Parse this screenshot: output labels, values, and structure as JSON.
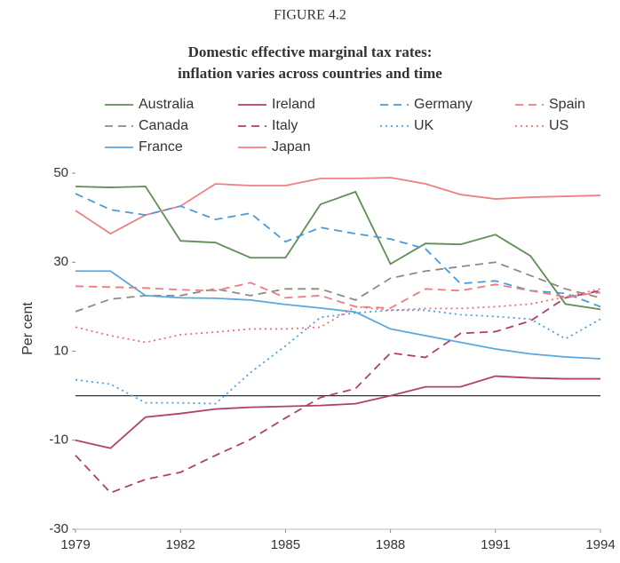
{
  "chart_data": {
    "type": "line",
    "figure_label": "FIGURE 4.2",
    "title": [
      "Domestic effective marginal tax rates:",
      "inflation varies across countries and time"
    ],
    "y_label": "Per cent",
    "x": [
      1979,
      1980,
      1981,
      1982,
      1983,
      1984,
      1985,
      1986,
      1987,
      1988,
      1989,
      1990,
      1991,
      1992,
      1993,
      1994
    ],
    "xlim": [
      1979,
      1994
    ],
    "xticks": [
      1979,
      1982,
      1985,
      1988,
      1991,
      1994
    ],
    "ylim": [
      -30,
      50
    ],
    "yticks": [
      -30,
      -10,
      10,
      30,
      50
    ],
    "series": [
      {
        "name": "Australia",
        "color": "#5f8f55",
        "style": "solid",
        "values": [
          47,
          46.8,
          47,
          34.8,
          34.4,
          31,
          31,
          43,
          45.8,
          29.6,
          34.2,
          34,
          36.2,
          31.4,
          20.6,
          19.4
        ]
      },
      {
        "name": "Canada",
        "color": "#8c8c84",
        "style": "dashed",
        "values": [
          18.9,
          21.7,
          22.5,
          22.5,
          24,
          22.5,
          24,
          24,
          21.5,
          26.4,
          28,
          29,
          30,
          27,
          24,
          22
        ]
      },
      {
        "name": "France",
        "color": "#5aa8e0",
        "style": "solid",
        "values": [
          28,
          28,
          22.5,
          22,
          21.9,
          21.5,
          20.5,
          19.7,
          18.8,
          15,
          13.5,
          12,
          10.5,
          9.4,
          8.7,
          8.3
        ]
      },
      {
        "name": "Ireland",
        "color": "#b0406a",
        "style": "solid",
        "values": [
          -10,
          -11.8,
          -4.8,
          -4,
          -3,
          -2.6,
          -2.4,
          -2.2,
          -1.8,
          0,
          2,
          2,
          4.4,
          4,
          3.8,
          3.8
        ]
      },
      {
        "name": "Italy",
        "color": "#b0406a",
        "style": "dashed",
        "values": [
          -13.4,
          -21.8,
          -18.8,
          -17.2,
          -13.4,
          -9.8,
          -5,
          -0.4,
          1.6,
          9.6,
          8.6,
          14,
          14.4,
          16.8,
          22,
          23.6
        ]
      },
      {
        "name": "Japan",
        "color": "#f08080",
        "style": "solid",
        "values": [
          41.6,
          36.4,
          40.6,
          42.6,
          47.6,
          47.2,
          47.2,
          48.8,
          48.8,
          49,
          47.6,
          45.2,
          44.2,
          44.6,
          44.8,
          45
        ]
      },
      {
        "name": "Germany",
        "color": "#4a9ad8",
        "style": "dashed",
        "values": [
          45.4,
          41.8,
          40.6,
          42.6,
          39.6,
          41,
          34.6,
          37.8,
          36.4,
          35.2,
          33,
          25.2,
          25.8,
          23.6,
          23,
          20
        ]
      },
      {
        "name": "UK",
        "color": "#4aa0e0",
        "style": "dotted",
        "values": [
          3.6,
          2.6,
          -1.6,
          -1.6,
          -1.8,
          5.2,
          11.2,
          17.6,
          18.6,
          19.2,
          19.2,
          18.2,
          17.8,
          17.2,
          12.8,
          17.2
        ]
      },
      {
        "name": "Spain",
        "color": "#f07a80",
        "style": "dashed",
        "values": [
          24.6,
          24.4,
          24.2,
          23.8,
          23.6,
          25.4,
          22,
          22.5,
          20,
          19.7,
          24,
          23.6,
          25,
          23.6,
          22.2,
          23.2
        ]
      },
      {
        "name": "US",
        "color": "#f07070",
        "style": "dotted",
        "values": [
          15.4,
          13.5,
          12,
          13.7,
          14.3,
          15,
          15,
          15.4,
          20,
          19.2,
          19.6,
          19.6,
          20,
          20.6,
          22.2,
          24
        ]
      }
    ]
  }
}
